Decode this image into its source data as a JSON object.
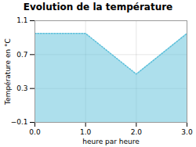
{
  "chart_data": {
    "type": "area",
    "title": "Evolution de la température",
    "xlabel": "heure par heure",
    "ylabel": "Température en °C",
    "x": [
      0,
      1,
      2,
      3
    ],
    "values": [
      0.95,
      0.95,
      0.47,
      0.95
    ],
    "color": "#5bbfda",
    "line_style": "dotted",
    "xlim": [
      0,
      3
    ],
    "ylim": [
      -0.1,
      1.1
    ],
    "xticks": [
      0,
      1,
      2,
      3
    ],
    "yticks": [
      -0.1,
      0.3,
      0.7,
      1.1
    ],
    "grid": true
  }
}
